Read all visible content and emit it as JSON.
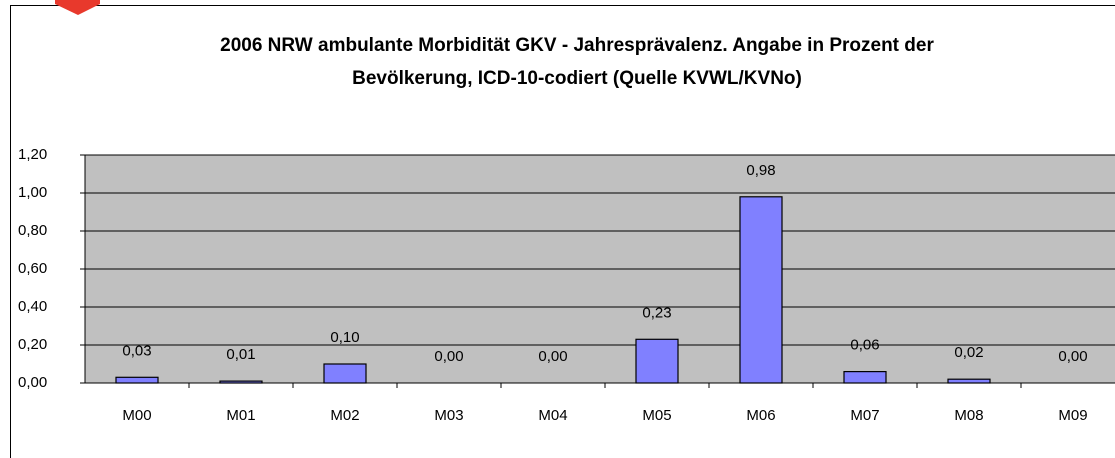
{
  "chart_data": {
    "type": "bar",
    "title": [
      "2006 NRW ambulante Morbidität GKV - Jahresprävalenz. Angabe in Prozent der",
      "Bevölkerung,  ICD-10-codiert (Quelle KVWL/KVNo)"
    ],
    "categories": [
      "M00",
      "M01",
      "M02",
      "M03",
      "M04",
      "M05",
      "M06",
      "M07",
      "M08",
      "M09"
    ],
    "values": [
      0.03,
      0.01,
      0.1,
      0.0,
      0.0,
      0.23,
      0.98,
      0.06,
      0.02,
      0.0
    ],
    "value_labels": [
      "0,03",
      "0,01",
      "0,10",
      "0,00",
      "0,00",
      "0,23",
      "0,98",
      "0,06",
      "0,02",
      "0,00"
    ],
    "color": "#8080ff",
    "ylim": [
      0,
      1.2
    ],
    "yticks": [
      {
        "value": 0,
        "label": "0,00"
      },
      {
        "value": 0.2,
        "label": "0,20"
      },
      {
        "value": 0.4,
        "label": "0,40"
      },
      {
        "value": 0.6,
        "label": "0,60"
      },
      {
        "value": 0.8,
        "label": "0,80"
      },
      {
        "value": 1.0,
        "label": "1,00"
      },
      {
        "value": 1.2,
        "label": "1,20"
      }
    ],
    "grid": true
  }
}
